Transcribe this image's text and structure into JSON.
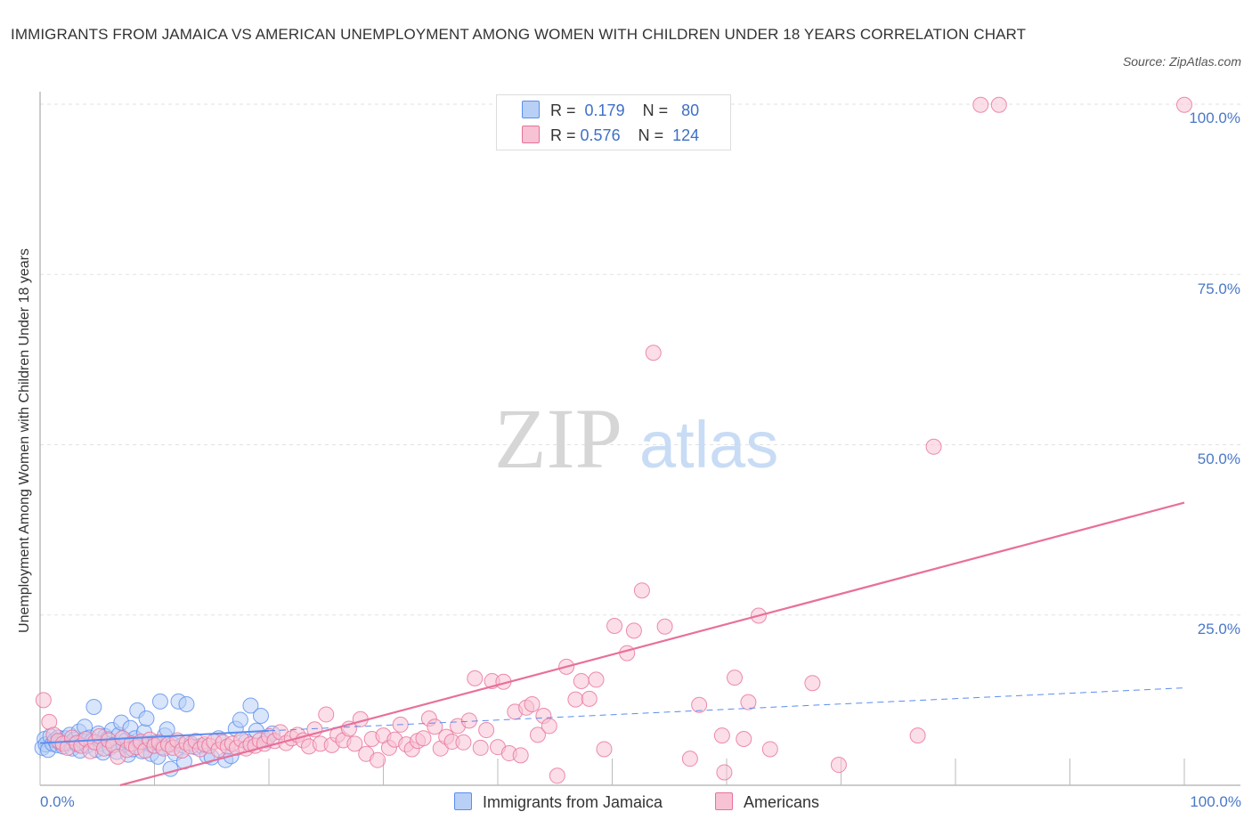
{
  "title": "IMMIGRANTS FROM JAMAICA VS AMERICAN UNEMPLOYMENT AMONG WOMEN WITH CHILDREN UNDER 18 YEARS CORRELATION CHART",
  "source": "Source: ZipAtlas.com",
  "watermark": {
    "zip": "ZIP",
    "atlas": "atlas"
  },
  "colors": {
    "blue": "#5b8def",
    "pink": "#e8709a",
    "blue_fill": "#b8d0f5",
    "pink_fill": "#f7c3d4",
    "tick": "#4a78c7"
  },
  "legend": {
    "rows": [
      {
        "r_label": "R =",
        "r_value": "0.179",
        "n_label": "N =",
        "n_value": "80"
      },
      {
        "r_label": "R =",
        "r_value": "0.576",
        "n_label": "N =",
        "n_value": "124"
      }
    ]
  },
  "bottom_legend": [
    "Immigrants from Jamaica",
    "Americans"
  ],
  "chart_data": {
    "type": "scatter",
    "xlabel": "",
    "ylabel": "Unemployment Among Women with Children Under 18 years",
    "xlim": [
      0,
      100
    ],
    "ylim": [
      0,
      100
    ],
    "x_tick_labels": [
      "0.0%",
      "100.0%"
    ],
    "y_tick_labels": [
      "100.0%",
      "75.0%",
      "50.0%",
      "25.0%"
    ],
    "y_ticks": [
      100,
      75,
      50,
      25
    ],
    "grid": true,
    "legend_position": "top-center",
    "series": [
      {
        "name": "Immigrants from Jamaica",
        "color": "#5b8def",
        "R": 0.179,
        "N": 80,
        "trend": {
          "x0": 0,
          "y0": 6.2,
          "x1": 20,
          "y1": 8.0,
          "dashed_to_x": 100,
          "dashed_to_y": 14.3
        },
        "points": [
          [
            0.2,
            5.5
          ],
          [
            0.4,
            6.8
          ],
          [
            0.5,
            6.0
          ],
          [
            0.7,
            5.2
          ],
          [
            0.9,
            7.2
          ],
          [
            1.1,
            6.1
          ],
          [
            1.3,
            6.6
          ],
          [
            1.5,
            5.9
          ],
          [
            1.6,
            7.0
          ],
          [
            1.8,
            6.3
          ],
          [
            2.0,
            5.7
          ],
          [
            2.2,
            6.9
          ],
          [
            2.4,
            6.2
          ],
          [
            2.6,
            7.4
          ],
          [
            2.8,
            5.4
          ],
          [
            3.0,
            6.7
          ],
          [
            3.2,
            6.0
          ],
          [
            3.4,
            7.9
          ],
          [
            3.5,
            5.1
          ],
          [
            3.7,
            6.5
          ],
          [
            3.9,
            8.6
          ],
          [
            4.1,
            5.8
          ],
          [
            4.3,
            7.0
          ],
          [
            4.5,
            6.4
          ],
          [
            4.7,
            11.5
          ],
          [
            4.9,
            5.2
          ],
          [
            5.1,
            7.6
          ],
          [
            5.3,
            6.1
          ],
          [
            5.5,
            4.8
          ],
          [
            5.7,
            7.2
          ],
          [
            5.9,
            6.8
          ],
          [
            6.1,
            5.5
          ],
          [
            6.3,
            8.1
          ],
          [
            6.5,
            6.0
          ],
          [
            6.7,
            4.9
          ],
          [
            6.9,
            7.4
          ],
          [
            7.1,
            9.2
          ],
          [
            7.3,
            5.9
          ],
          [
            7.5,
            6.6
          ],
          [
            7.7,
            4.5
          ],
          [
            7.9,
            8.4
          ],
          [
            8.1,
            5.3
          ],
          [
            8.3,
            6.9
          ],
          [
            8.5,
            11.0
          ],
          [
            8.7,
            6.2
          ],
          [
            8.9,
            5.0
          ],
          [
            9.1,
            7.8
          ],
          [
            9.3,
            9.8
          ],
          [
            9.5,
            6.1
          ],
          [
            9.7,
            4.6
          ],
          [
            9.9,
            5.8
          ],
          [
            10.1,
            6.3
          ],
          [
            10.3,
            4.2
          ],
          [
            10.5,
            12.3
          ],
          [
            10.7,
            5.6
          ],
          [
            10.9,
            7.3
          ],
          [
            11.1,
            8.2
          ],
          [
            11.4,
            2.4
          ],
          [
            11.6,
            6.0
          ],
          [
            11.8,
            4.7
          ],
          [
            12.1,
            12.3
          ],
          [
            12.4,
            5.9
          ],
          [
            12.6,
            3.5
          ],
          [
            12.8,
            11.9
          ],
          [
            13.2,
            6.1
          ],
          [
            13.6,
            5.6
          ],
          [
            14.1,
            5.8
          ],
          [
            14.6,
            4.3
          ],
          [
            15.0,
            4.1
          ],
          [
            15.6,
            6.9
          ],
          [
            16.2,
            3.7
          ],
          [
            16.7,
            4.3
          ],
          [
            17.1,
            8.3
          ],
          [
            17.5,
            9.6
          ],
          [
            18.0,
            6.4
          ],
          [
            18.4,
            11.7
          ],
          [
            18.9,
            8.0
          ],
          [
            19.3,
            10.2
          ],
          [
            19.8,
            6.6
          ],
          [
            20.3,
            7.6
          ]
        ]
      },
      {
        "name": "Americans",
        "color": "#e8709a",
        "R": 0.576,
        "N": 124,
        "trend": {
          "x0": 7,
          "y0": 0,
          "x1": 100,
          "y1": 41.5
        },
        "points": [
          [
            0.3,
            12.5
          ],
          [
            0.8,
            9.3
          ],
          [
            1.2,
            7.4
          ],
          [
            1.6,
            6.5
          ],
          [
            2.0,
            6.1
          ],
          [
            2.4,
            5.5
          ],
          [
            2.8,
            7.0
          ],
          [
            3.2,
            6.2
          ],
          [
            3.6,
            5.8
          ],
          [
            4.0,
            6.8
          ],
          [
            4.4,
            5.0
          ],
          [
            4.8,
            6.3
          ],
          [
            5.2,
            7.2
          ],
          [
            5.6,
            5.4
          ],
          [
            6.0,
            6.6
          ],
          [
            6.4,
            5.9
          ],
          [
            6.8,
            4.2
          ],
          [
            7.2,
            6.9
          ],
          [
            7.6,
            5.2
          ],
          [
            8.0,
            6.1
          ],
          [
            8.4,
            5.6
          ],
          [
            8.8,
            6.4
          ],
          [
            9.2,
            5.1
          ],
          [
            9.6,
            6.7
          ],
          [
            10.0,
            5.8
          ],
          [
            10.4,
            6.3
          ],
          [
            10.8,
            5.4
          ],
          [
            11.2,
            6.0
          ],
          [
            11.6,
            5.5
          ],
          [
            12.0,
            6.6
          ],
          [
            12.4,
            5.1
          ],
          [
            12.8,
            6.2
          ],
          [
            13.2,
            5.7
          ],
          [
            13.6,
            6.5
          ],
          [
            14.0,
            5.3
          ],
          [
            14.4,
            6.0
          ],
          [
            14.8,
            5.8
          ],
          [
            15.2,
            6.4
          ],
          [
            15.6,
            5.2
          ],
          [
            16.0,
            6.3
          ],
          [
            16.4,
            5.7
          ],
          [
            16.8,
            6.1
          ],
          [
            17.2,
            5.5
          ],
          [
            17.6,
            6.7
          ],
          [
            18.0,
            5.4
          ],
          [
            18.4,
            6.0
          ],
          [
            18.8,
            5.8
          ],
          [
            19.2,
            6.6
          ],
          [
            19.6,
            6.1
          ],
          [
            20.0,
            7.2
          ],
          [
            20.5,
            6.5
          ],
          [
            21.0,
            7.8
          ],
          [
            21.5,
            6.2
          ],
          [
            22.0,
            6.9
          ],
          [
            22.5,
            7.4
          ],
          [
            23.0,
            6.6
          ],
          [
            23.5,
            5.7
          ],
          [
            24.0,
            8.2
          ],
          [
            24.5,
            6.1
          ],
          [
            25.0,
            10.4
          ],
          [
            25.5,
            5.9
          ],
          [
            26.0,
            7.4
          ],
          [
            26.5,
            6.6
          ],
          [
            27.0,
            8.3
          ],
          [
            27.5,
            6.1
          ],
          [
            28.0,
            9.7
          ],
          [
            28.5,
            4.6
          ],
          [
            29.0,
            6.8
          ],
          [
            29.5,
            3.7
          ],
          [
            30.0,
            7.3
          ],
          [
            30.5,
            5.5
          ],
          [
            31.0,
            6.7
          ],
          [
            31.5,
            8.9
          ],
          [
            32.0,
            6.0
          ],
          [
            32.5,
            5.3
          ],
          [
            33.0,
            6.5
          ],
          [
            33.5,
            6.9
          ],
          [
            34.0,
            9.8
          ],
          [
            34.5,
            8.6
          ],
          [
            35.0,
            5.4
          ],
          [
            35.5,
            7.1
          ],
          [
            36.0,
            6.4
          ],
          [
            36.5,
            8.7
          ],
          [
            37.0,
            6.3
          ],
          [
            37.5,
            9.5
          ],
          [
            38.0,
            15.7
          ],
          [
            38.5,
            5.5
          ],
          [
            39.0,
            8.1
          ],
          [
            39.5,
            15.3
          ],
          [
            40.0,
            5.6
          ],
          [
            40.5,
            15.2
          ],
          [
            41.0,
            4.7
          ],
          [
            41.5,
            10.8
          ],
          [
            42.0,
            4.4
          ],
          [
            42.5,
            11.4
          ],
          [
            43.0,
            11.9
          ],
          [
            43.5,
            7.4
          ],
          [
            44.0,
            10.2
          ],
          [
            44.5,
            8.7
          ],
          [
            45.2,
            1.4
          ],
          [
            46.0,
            17.4
          ],
          [
            46.8,
            12.6
          ],
          [
            47.3,
            15.3
          ],
          [
            48.0,
            12.7
          ],
          [
            48.6,
            15.5
          ],
          [
            49.3,
            5.3
          ],
          [
            50.2,
            23.4
          ],
          [
            51.3,
            19.4
          ],
          [
            51.9,
            22.7
          ],
          [
            52.6,
            28.6
          ],
          [
            53.6,
            63.5
          ],
          [
            54.6,
            23.3
          ],
          [
            56.8,
            3.9
          ],
          [
            57.6,
            11.8
          ],
          [
            59.6,
            7.3
          ],
          [
            59.8,
            1.9
          ],
          [
            60.7,
            15.8
          ],
          [
            61.5,
            6.8
          ],
          [
            61.9,
            12.2
          ],
          [
            62.8,
            24.9
          ],
          [
            63.8,
            5.3
          ],
          [
            67.5,
            15.0
          ],
          [
            69.8,
            3.0
          ],
          [
            76.7,
            7.3
          ],
          [
            78.1,
            49.7
          ],
          [
            82.2,
            99.9
          ],
          [
            83.8,
            99.9
          ],
          [
            100.0,
            99.9
          ]
        ]
      }
    ]
  }
}
